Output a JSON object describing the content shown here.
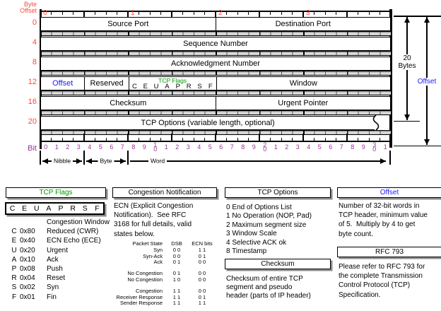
{
  "colors": {
    "red": "#f9493b",
    "purple": "#993399",
    "green": "#009900",
    "blue": "#1a1aff",
    "shadow": "#8c8c8c"
  },
  "diagram": {
    "byte_offset_label": "Byte\nOffset",
    "bit_label": "Bit",
    "byte_ruler_labels": [
      "0",
      "1",
      "2",
      "3"
    ],
    "bit_labels": [
      "0",
      "1",
      "2",
      "3",
      "4",
      "5",
      "6",
      "7",
      "8",
      "9",
      "1\n0",
      "1",
      "2",
      "3",
      "4",
      "5",
      "6",
      "7",
      "8",
      "9",
      "2\n0",
      "1",
      "2",
      "3",
      "4",
      "5",
      "6",
      "7",
      "8",
      "9",
      "3\n0",
      "1"
    ],
    "rows": [
      {
        "offset": "0",
        "cells": [
          {
            "label": "Source Port",
            "bits": 16
          },
          {
            "label": "Destination Port",
            "bits": 16
          }
        ]
      },
      {
        "offset": "4",
        "cells": [
          {
            "label": "Sequence Number",
            "bits": 32
          }
        ]
      },
      {
        "offset": "8",
        "cells": [
          {
            "label": "Acknowledgment Number",
            "bits": 32
          }
        ]
      },
      {
        "offset": "12",
        "cells": [
          {
            "label": "Offset",
            "bits": 4,
            "color": "blue"
          },
          {
            "label": "Reserved",
            "bits": 4
          },
          {
            "label": "TCP Flags",
            "bits": 8,
            "letters": [
              "C",
              "E",
              "U",
              "A",
              "P",
              "R",
              "S",
              "F"
            ]
          },
          {
            "label": "Window",
            "bits": 16
          }
        ]
      },
      {
        "offset": "16",
        "cells": [
          {
            "label": "Checksum",
            "bits": 16
          },
          {
            "label": "Urgent Pointer",
            "bits": 16
          }
        ]
      },
      {
        "offset": "20",
        "cells": [
          {
            "label": "TCP Options (variable length, optional)",
            "bits": 32
          }
        ],
        "torn": true
      }
    ],
    "groups": [
      {
        "label": "Nibble",
        "from": 0,
        "to": 4,
        "heads": "both"
      },
      {
        "label": "Byte",
        "from": 4,
        "to": 8,
        "heads": "both"
      },
      {
        "label": "Word",
        "from": 8,
        "to": 32,
        "heads": "right"
      }
    ],
    "side": {
      "total_label": "20\nBytes",
      "offset_label": "Offset"
    }
  },
  "panels": {
    "tcp_flags": {
      "title": "TCP Flags",
      "letters": [
        "C",
        "E",
        "U",
        "A",
        "P",
        "R",
        "S",
        "F"
      ],
      "entries": [
        {
          "f": "",
          "hex": "",
          "d": "Congestion Window"
        },
        {
          "f": "C",
          "hex": "0x80",
          "d": "Reduced (CWR)"
        },
        {
          "f": "E",
          "hex": "0x40",
          "d": "ECN Echo (ECE)"
        },
        {
          "f": "U",
          "hex": "0x20",
          "d": "Urgent"
        },
        {
          "f": "A",
          "hex": "0x10",
          "d": "Ack"
        },
        {
          "f": "P",
          "hex": "0x08",
          "d": "Push"
        },
        {
          "f": "R",
          "hex": "0x04",
          "d": "Reset"
        },
        {
          "f": "S",
          "hex": "0x02",
          "d": "Syn"
        },
        {
          "f": "F",
          "hex": "0x01",
          "d": "Fin"
        }
      ]
    },
    "congestion": {
      "title": "Congestion Notification",
      "body": "ECN (Explicit Congestion\nNotification).  See RFC\n3168 for full details, valid\nstates below.",
      "table": {
        "header": [
          "Packet State",
          "DSB",
          "ECN bits"
        ],
        "rows": [
          {
            "state": "Syn",
            "dsb": "0 0",
            "ecn": "1 1"
          },
          {
            "state": "Syn-Ack",
            "dsb": "0 0",
            "ecn": "0 1"
          },
          {
            "state": "Ack",
            "dsb": "0 1",
            "ecn": "0 0"
          },
          {
            "state": "No Congestion",
            "dsb": "0 1",
            "ecn": "0 0",
            "gap": true
          },
          {
            "state": "No Congestion",
            "dsb": "1 0",
            "ecn": "0 0"
          },
          {
            "state": "Congestion",
            "dsb": "1 1",
            "ecn": "0 0",
            "gap": true
          },
          {
            "state": "Receiver Response",
            "dsb": "1 1",
            "ecn": "0 1"
          },
          {
            "state": "Sender Response",
            "dsb": "1 1",
            "ecn": "1 1"
          }
        ]
      }
    },
    "tcp_options": {
      "title": "TCP Options",
      "items": [
        "0 End of Options List",
        "1 No Operation (NOP, Pad)",
        "2 Maximum segment size",
        "3 Window Scale",
        "4 Selective ACK ok",
        "8 Timestamp"
      ]
    },
    "checksum": {
      "title": "Checksum",
      "body": "Checksum of entire TCP\nsegment and pseudo\nheader (parts of IP header)"
    },
    "offset": {
      "title": "Offset",
      "body": "Number of 32-bit words in\nTCP header, minimum value\nof 5.  Multiply by 4 to get\nbyte count."
    },
    "rfc": {
      "title": "RFC 793",
      "body": "Please refer to RFC 793 for\nthe complete Transmission\nControl Protocol (TCP)\nSpecification."
    }
  }
}
